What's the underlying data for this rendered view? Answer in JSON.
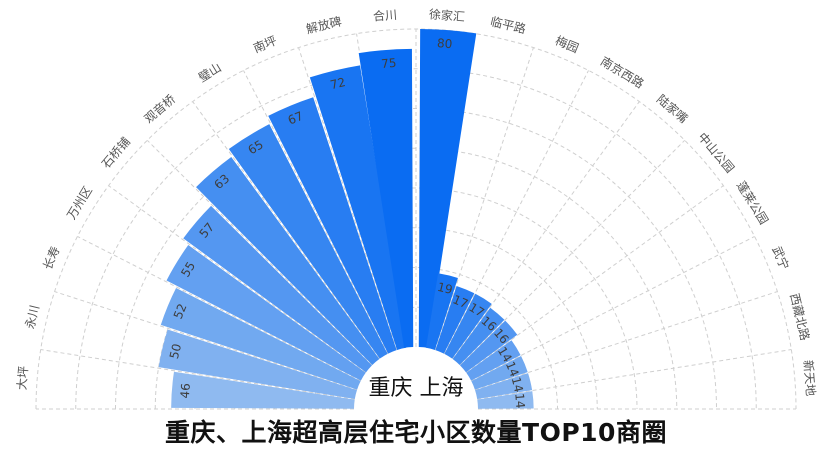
{
  "title": "重庆、上海超高层住宅小区数量TOP10商圈",
  "chart_data": {
    "type": "bar",
    "subtype": "polar-half-ring",
    "center_label": "重庆 上海",
    "radial_max": 80,
    "grid": true,
    "series": [
      {
        "name": "重庆",
        "categories": [
          "大坪",
          "永川",
          "长寿",
          "万州区",
          "石桥铺",
          "观音桥",
          "璧山",
          "南坪",
          "解放碑",
          "合川"
        ],
        "values": [
          46,
          50,
          52,
          55,
          57,
          63,
          65,
          67,
          72,
          75
        ],
        "color_start": "#8fbaf0",
        "color_end": "#0a6cf2"
      },
      {
        "name": "上海",
        "categories": [
          "徐家汇",
          "临平路",
          "梅园",
          "南京西路",
          "陆家嘴",
          "中山公园",
          "蓬莱公园",
          "武宁",
          "西藏北路",
          "新天地"
        ],
        "values": [
          80,
          19,
          17,
          17,
          16,
          16,
          14,
          14,
          14,
          14
        ],
        "color_start": "#0a6cf2",
        "color_end": "#8fbaf0"
      }
    ]
  }
}
